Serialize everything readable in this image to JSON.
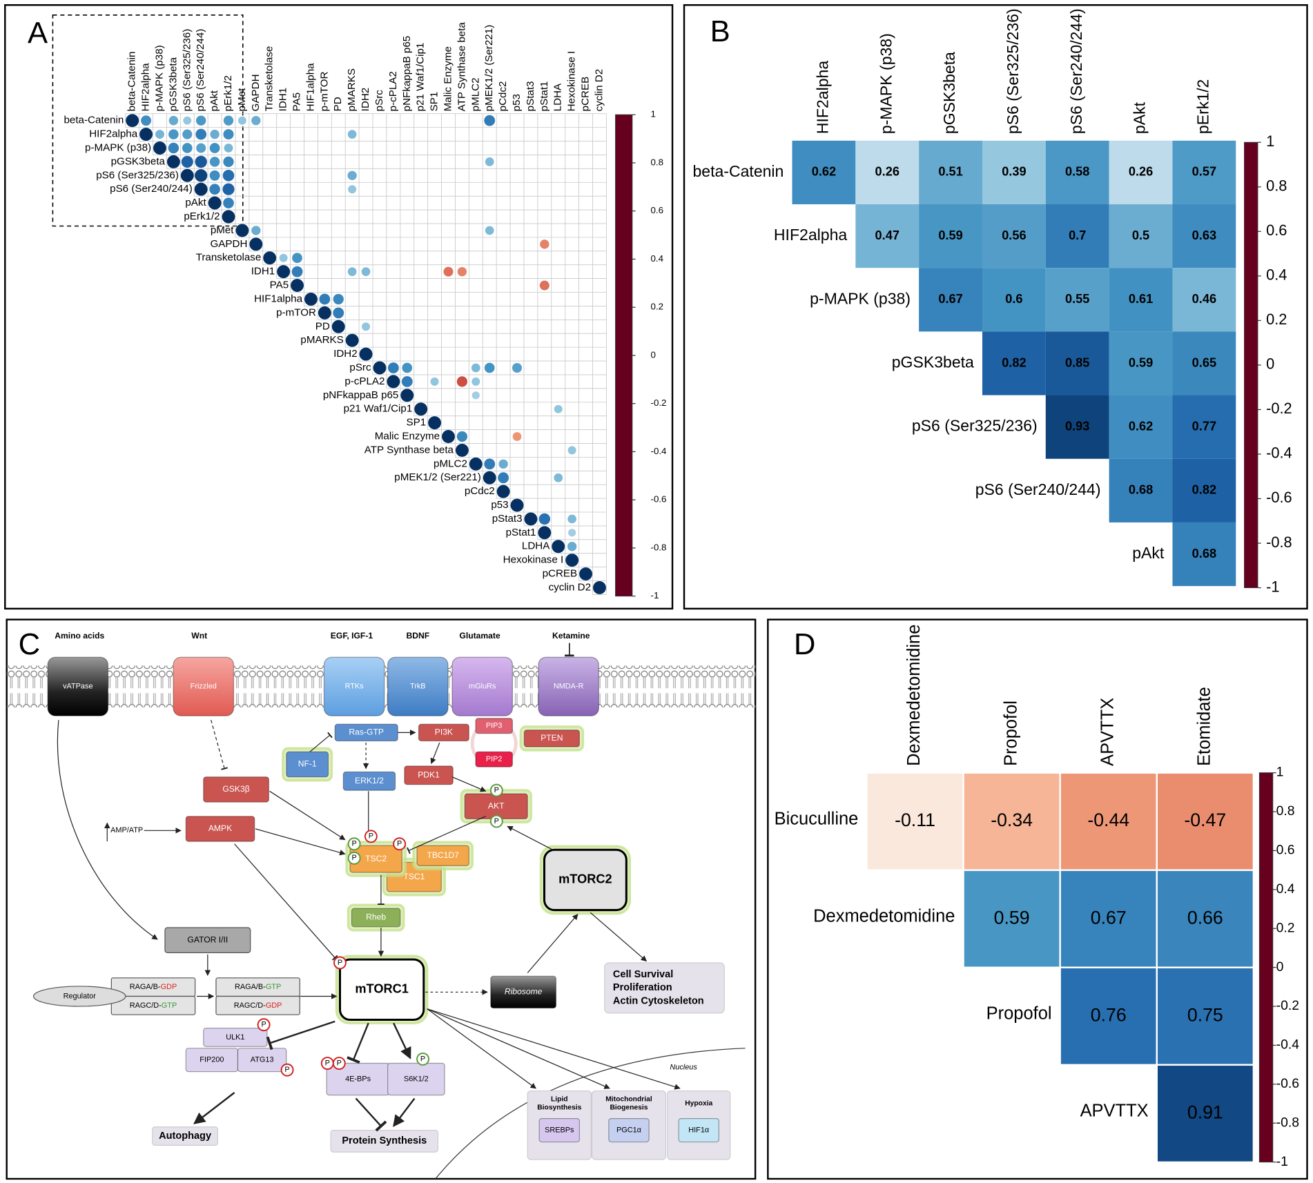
{
  "chart_data": [
    {
      "type": "corrplot",
      "label": "A",
      "variables": [
        "beta-Catenin",
        "HIF2alpha",
        "p-MAPK (p38)",
        "pGSK3beta",
        "pS6 (Ser325/236)",
        "pS6 (Ser240/244)",
        "pAkt",
        "pErk1/2",
        "pMet",
        "GAPDH",
        "Transketolase",
        "IDH1",
        "PA5",
        "HIF1alpha",
        "p-mTOR",
        "PD",
        "pMARKS",
        "IDH2",
        "pSrc",
        "p-cPLA2",
        "pNFkappaB p65",
        "p21 Waf1/Cip1",
        "SP1",
        "Malic Enzyme",
        "ATP Synthase beta",
        "pMLC2",
        "pMEK1/2 (Ser221)",
        "pCdc2",
        "p53",
        "pStat3",
        "pStat1",
        "LDHA",
        "Hexokinase I",
        "pCREB",
        "cyclin D2"
      ],
      "cells": [
        [
          0,
          0,
          1
        ],
        [
          0,
          1,
          0.62
        ],
        [
          0,
          3,
          0.51
        ],
        [
          0,
          4,
          0.39
        ],
        [
          0,
          5,
          0.58
        ],
        [
          0,
          7,
          0.57
        ],
        [
          0,
          8,
          0.4
        ],
        [
          0,
          9,
          0.5
        ],
        [
          0,
          26,
          0.7
        ],
        [
          1,
          1,
          1
        ],
        [
          1,
          2,
          0.47
        ],
        [
          1,
          3,
          0.59
        ],
        [
          1,
          4,
          0.56
        ],
        [
          1,
          5,
          0.7
        ],
        [
          1,
          6,
          0.5
        ],
        [
          1,
          7,
          0.63
        ],
        [
          1,
          16,
          0.45
        ],
        [
          2,
          2,
          1
        ],
        [
          2,
          3,
          0.67
        ],
        [
          2,
          4,
          0.6
        ],
        [
          2,
          5,
          0.55
        ],
        [
          2,
          6,
          0.61
        ],
        [
          2,
          7,
          0.46
        ],
        [
          3,
          3,
          1
        ],
        [
          3,
          4,
          0.82
        ],
        [
          3,
          5,
          0.85
        ],
        [
          3,
          6,
          0.59
        ],
        [
          3,
          7,
          0.65
        ],
        [
          3,
          26,
          0.45
        ],
        [
          4,
          4,
          1
        ],
        [
          4,
          5,
          0.93
        ],
        [
          4,
          6,
          0.62
        ],
        [
          4,
          7,
          0.77
        ],
        [
          4,
          16,
          0.5
        ],
        [
          5,
          5,
          1
        ],
        [
          5,
          6,
          0.68
        ],
        [
          5,
          7,
          0.82
        ],
        [
          5,
          16,
          0.4
        ],
        [
          6,
          6,
          1
        ],
        [
          6,
          7,
          0.68
        ],
        [
          7,
          7,
          1
        ],
        [
          8,
          8,
          1
        ],
        [
          8,
          9,
          0.5
        ],
        [
          8,
          26,
          0.45
        ],
        [
          9,
          9,
          1
        ],
        [
          9,
          30,
          -0.5
        ],
        [
          10,
          10,
          1
        ],
        [
          10,
          11,
          0.4
        ],
        [
          10,
          12,
          0.6
        ],
        [
          11,
          11,
          1
        ],
        [
          11,
          12,
          0.7
        ],
        [
          11,
          16,
          0.45
        ],
        [
          11,
          17,
          0.45
        ],
        [
          11,
          23,
          -0.55
        ],
        [
          11,
          24,
          -0.5
        ],
        [
          12,
          12,
          1
        ],
        [
          12,
          30,
          -0.55
        ],
        [
          13,
          13,
          1
        ],
        [
          13,
          14,
          0.7
        ],
        [
          13,
          15,
          0.65
        ],
        [
          14,
          14,
          1
        ],
        [
          14,
          15,
          0.7
        ],
        [
          15,
          15,
          1
        ],
        [
          15,
          17,
          0.4
        ],
        [
          16,
          16,
          1
        ],
        [
          17,
          17,
          1
        ],
        [
          18,
          18,
          1
        ],
        [
          18,
          19,
          0.7
        ],
        [
          18,
          20,
          0.6
        ],
        [
          18,
          25,
          0.45
        ],
        [
          18,
          26,
          0.6
        ],
        [
          18,
          28,
          0.55
        ],
        [
          19,
          19,
          1
        ],
        [
          19,
          20,
          0.7
        ],
        [
          19,
          22,
          0.4
        ],
        [
          19,
          24,
          -0.65
        ],
        [
          19,
          25,
          0.4
        ],
        [
          20,
          20,
          1
        ],
        [
          20,
          25,
          0.35
        ],
        [
          21,
          21,
          1
        ],
        [
          21,
          31,
          0.4
        ],
        [
          22,
          22,
          1
        ],
        [
          23,
          23,
          1
        ],
        [
          23,
          24,
          0.65
        ],
        [
          23,
          28,
          -0.45
        ],
        [
          24,
          24,
          1
        ],
        [
          24,
          32,
          0.4
        ],
        [
          25,
          25,
          1
        ],
        [
          25,
          26,
          0.7
        ],
        [
          25,
          27,
          0.5
        ],
        [
          26,
          26,
          1
        ],
        [
          26,
          27,
          0.7
        ],
        [
          26,
          31,
          0.45
        ],
        [
          27,
          27,
          1
        ],
        [
          28,
          28,
          1
        ],
        [
          29,
          29,
          1
        ],
        [
          29,
          30,
          0.75
        ],
        [
          29,
          32,
          0.45
        ],
        [
          30,
          30,
          1
        ],
        [
          30,
          32,
          0.35
        ],
        [
          31,
          31,
          1
        ],
        [
          31,
          32,
          0.5
        ],
        [
          32,
          32,
          1
        ],
        [
          33,
          33,
          1
        ],
        [
          34,
          34,
          1
        ]
      ],
      "zlim": [
        -1,
        1
      ],
      "zticks": [
        1,
        0.8,
        0.6,
        0.4,
        0.2,
        0,
        -0.2,
        -0.4,
        -0.6,
        -0.8,
        -1
      ],
      "colors": [
        "#67001f",
        "#b2182b",
        "#d6604d",
        "#f4a582",
        "#fddbc7",
        "#f7f7f7",
        "#d1e5f0",
        "#92c5de",
        "#4393c3",
        "#2166ac",
        "#053061"
      ]
    },
    {
      "type": "heatmap",
      "label": "B",
      "rows": [
        "beta-Catenin",
        "HIF2alpha",
        "p-MAPK (p38)",
        "pGSK3beta",
        "pS6 (Ser325/236)",
        "pS6 (Ser240/244)",
        "pAkt"
      ],
      "columns": [
        "HIF2alpha",
        "p-MAPK (p38)",
        "pGSK3beta",
        "pS6 (Ser325/236)",
        "pS6 (Ser240/244)",
        "pAkt",
        "pErk1/2"
      ],
      "values": [
        [
          0.62,
          0.26,
          0.51,
          0.39,
          0.58,
          0.26,
          0.57
        ],
        [
          null,
          0.47,
          0.59,
          0.56,
          0.7,
          0.5,
          0.63
        ],
        [
          null,
          null,
          0.67,
          0.6,
          0.55,
          0.61,
          0.46
        ],
        [
          null,
          null,
          null,
          0.82,
          0.85,
          0.59,
          0.65
        ],
        [
          null,
          null,
          null,
          null,
          0.93,
          0.62,
          0.77
        ],
        [
          null,
          null,
          null,
          null,
          null,
          0.68,
          0.82
        ],
        [
          null,
          null,
          null,
          null,
          null,
          null,
          0.68
        ]
      ],
      "zlim": [
        -1,
        1
      ],
      "zticks": [
        1,
        0.8,
        0.6,
        0.4,
        0.2,
        0,
        -0.2,
        -0.4,
        -0.6,
        -0.8,
        -1
      ],
      "colors": [
        "#67001f",
        "#b2182b",
        "#d6604d",
        "#f4a582",
        "#fddbc7",
        "#f7f7f7",
        "#d1e5f0",
        "#92c5de",
        "#4393c3",
        "#2166ac",
        "#053061"
      ]
    },
    {
      "type": "heatmap",
      "label": "D",
      "rows": [
        "Bicuculline",
        "Dexmedetomidine",
        "Propofol",
        "APVTTX"
      ],
      "columns": [
        "Dexmedetomidine",
        "Propofol",
        "APVTTX",
        "Etomidate"
      ],
      "values": [
        [
          -0.11,
          -0.34,
          -0.44,
          -0.47
        ],
        [
          null,
          0.59,
          0.67,
          0.66
        ],
        [
          null,
          null,
          0.76,
          0.75
        ],
        [
          null,
          null,
          null,
          0.91
        ]
      ],
      "zlim": [
        -1,
        1
      ],
      "zticks": [
        1,
        0.8,
        0.6,
        0.4,
        0.2,
        0,
        -0.2,
        -0.4,
        -0.6,
        -0.8,
        -1
      ],
      "colors": [
        "#67001f",
        "#b2182b",
        "#d6604d",
        "#f4a582",
        "#fddbc7",
        "#f7f7f7",
        "#d1e5f0",
        "#92c5de",
        "#4393c3",
        "#2166ac",
        "#053061"
      ]
    }
  ],
  "diagram": {
    "label": "C",
    "inputs": [
      "Amino acids",
      "Wnt",
      "EGF, IGF-1",
      "BDNF",
      "Glutamate",
      "Ketamine"
    ],
    "receptors": [
      "vATPase",
      "Frizzled",
      "RTKs",
      "TrkB",
      "mGluRs",
      "NMDA-R"
    ],
    "nodes": {
      "ras": "Ras-GTP",
      "pi3k": "PI3K",
      "pip3": "PIP3",
      "pip2": "PIP2",
      "pten": "PTEN",
      "nf1": "NF-1",
      "erk": "ERK1/2",
      "pdk1": "PDK1",
      "akt": "AKT",
      "gsk3b": "GSK3β",
      "ampk": "AMPK",
      "ampatp": "AMP/ATP",
      "tsc2": "TSC2",
      "tbc1d7": "TBC1D7",
      "tsc1": "TSC1",
      "rheb": "Rheb",
      "mtorc2": "mTORC2",
      "gator": "GATOR I/II",
      "regulator": "Regulator",
      "mtorc1": "mTORC1",
      "ribosome": "Ribosome",
      "ulk1": "ULK1",
      "fip200": "FIP200",
      "atg13": "ATG13",
      "ebp": "4E-BPs",
      "s6k": "S6K1/2",
      "autophagy": "Autophagy",
      "protein_synthesis": "Protein Synthesis",
      "nucleus": "Nucleus"
    },
    "rag": {
      "ab_gdp": [
        "RAGA/B-",
        "GDP"
      ],
      "cd_gtp": [
        "RAGC/D-",
        "GTP"
      ],
      "ab_gtp": [
        "RAGA/B-",
        "GTP"
      ],
      "cd_gdp": [
        "RAGC/D-",
        "GDP"
      ]
    },
    "outcomes": [
      "Cell Survival",
      "Proliferation",
      "Actin Cytoskeleton"
    ],
    "nuclear": [
      {
        "title": [
          "Lipid",
          "Biosynthesis"
        ],
        "factor": "SREBPs"
      },
      {
        "title": [
          "Mitochondrial",
          "Biogenesis"
        ],
        "factor": "PGC1α"
      },
      {
        "title": [
          "Hypoxia"
        ],
        "factor": "HIF1α"
      }
    ],
    "phospho": "P"
  }
}
